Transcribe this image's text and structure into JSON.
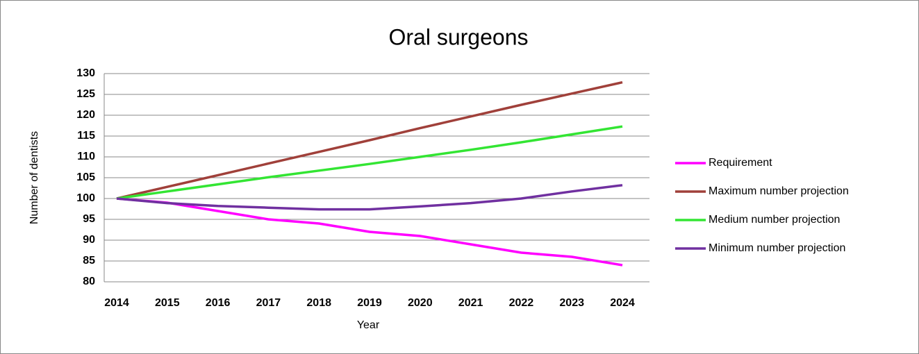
{
  "chart_data": {
    "type": "line",
    "title": "Oral surgeons",
    "x_label": "Year",
    "y_label": "Number of dentists",
    "categories": [
      "2014",
      "2015",
      "2016",
      "2017",
      "2018",
      "2019",
      "2020",
      "2021",
      "2022",
      "2023",
      "2024"
    ],
    "series": [
      {
        "name": "Requirement",
        "color": "#ff00ff",
        "values": [
          100,
          99,
          97,
          95,
          94,
          92,
          91,
          89,
          87,
          86,
          84
        ]
      },
      {
        "name": "Maximum number projection",
        "color": "#a0403a",
        "values": [
          100,
          102.8,
          105.6,
          108.4,
          111.2,
          114,
          116.9,
          119.7,
          122.5,
          125.2,
          127.9
        ]
      },
      {
        "name": "Medium number projection",
        "color": "#33e533",
        "values": [
          100,
          101.7,
          103.4,
          105.1,
          106.7,
          108.3,
          110,
          111.7,
          113.5,
          115.4,
          117.3
        ]
      },
      {
        "name": "Minimum number projection",
        "color": "#7030a0",
        "values": [
          100,
          98.9,
          98.2,
          97.8,
          97.4,
          97.4,
          98.1,
          98.9,
          100,
          101.7,
          103.2
        ]
      }
    ],
    "ylim": [
      80,
      130
    ],
    "yticks": [
      80,
      85,
      90,
      95,
      100,
      105,
      110,
      115,
      120,
      125,
      130
    ],
    "grid": true,
    "legend": "right"
  }
}
